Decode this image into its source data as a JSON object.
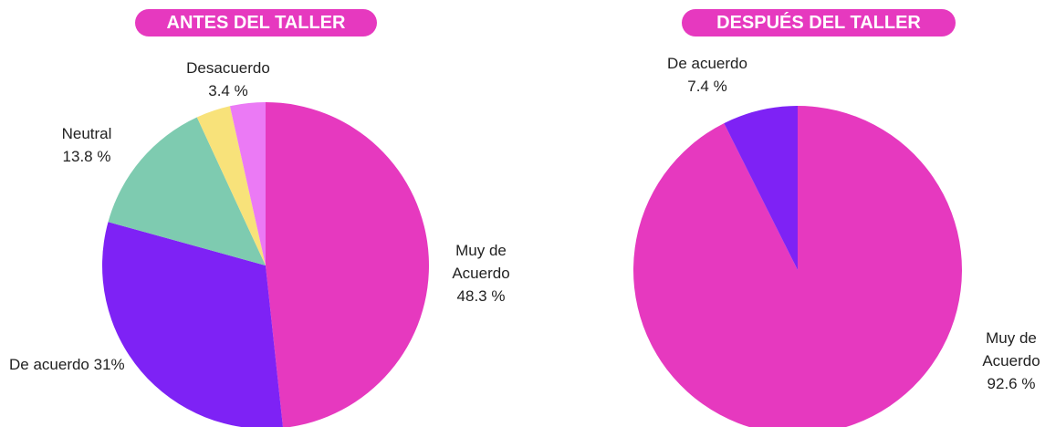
{
  "chart_data": [
    {
      "type": "pie",
      "title": "ANTES DEL TALLER",
      "categories": [
        "Muy de Acuerdo",
        "De acuerdo",
        "Neutral",
        "Desacuerdo",
        null
      ],
      "values": [
        48.3,
        31,
        13.8,
        3.4,
        3.5
      ],
      "value_labels": [
        "48.3 %",
        "31%",
        "13.8 %",
        "3.4 %",
        null
      ],
      "colors": [
        "#e639bf",
        "#7e22f5",
        "#7ecbb0",
        "#f8e27a",
        "#eb7af5"
      ]
    },
    {
      "type": "pie",
      "title": "DESPUÉS DEL TALLER",
      "categories": [
        "Muy de Acuerdo",
        "De acuerdo"
      ],
      "values": [
        92.6,
        7.4
      ],
      "value_labels": [
        "92.6 %",
        "7.4 %"
      ],
      "colors": [
        "#e639bf",
        "#7e22f5"
      ]
    }
  ]
}
